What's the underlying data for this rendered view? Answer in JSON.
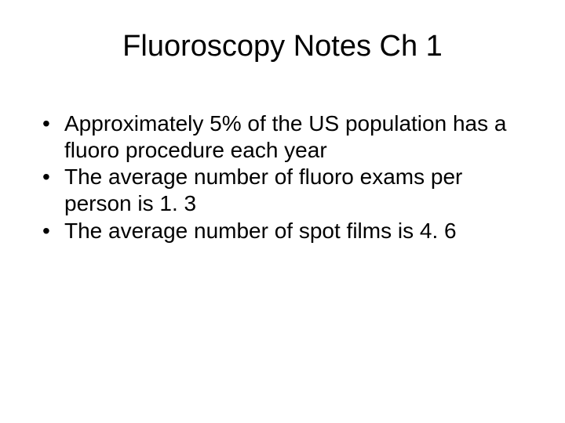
{
  "title": "Fluoroscopy Notes Ch 1",
  "bullets": [
    "Approximately 5% of the US population has a fluoro procedure each year",
    "The average number of fluoro exams per person is 1. 3",
    "The average number of spot films is 4. 6"
  ],
  "colors": {
    "background": "#ffffff",
    "text": "#000000"
  },
  "typography": {
    "font_family": "Arial",
    "title_fontsize": 38,
    "body_fontsize": 28
  }
}
